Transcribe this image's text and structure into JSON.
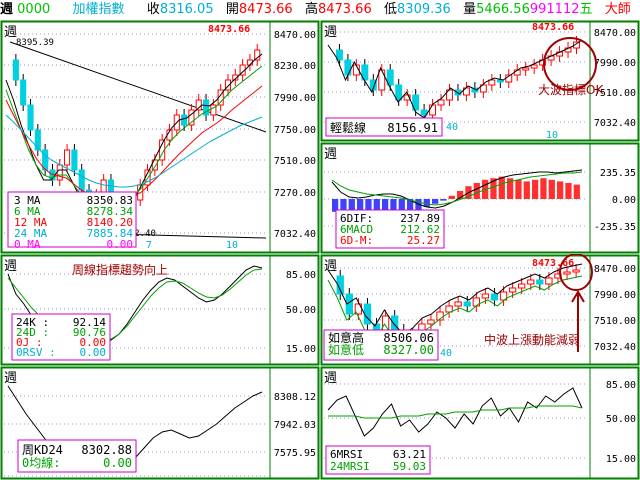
{
  "topbar": {
    "code": "0000",
    "name": "加權指數",
    "close_label": "收",
    "close_value": "8316.05",
    "open_label": "開",
    "open_value": "8473.66",
    "high_label": "高",
    "high_value": "8473.66",
    "low_label": "低",
    "low_value": "8309.36",
    "vol_label": "量",
    "vol_value": "5466.56",
    "date_value": "991112",
    "weekday": "五",
    "extra": "大師"
  },
  "colors": {
    "up": "#ff0000",
    "down": "#00d0e0",
    "grid": "#9999cc",
    "border": "#008000"
  },
  "panels": {
    "main": {
      "period": "週",
      "peak_label": "8473.66",
      "top_left_label": "8395.39",
      "low_label": "7032.40",
      "x_label_a": "7",
      "x_label_b": "10",
      "y_ticks": [
        "8470.00",
        "8230.00",
        "7990.00",
        "7750.00",
        "7510.00",
        "7270.00",
        "7032.40"
      ],
      "legend": [
        {
          "label": "3 MA",
          "value": "8350.83",
          "color": "#000000"
        },
        {
          "label": "6 MA",
          "value": "8278.34",
          "color": "#00a000"
        },
        {
          "label": "12 MA",
          "value": "8140.20",
          "color": "#ff0000"
        },
        {
          "label": "24 MA",
          "value": "7885.84",
          "color": "#00b0d0"
        },
        {
          "label": "0 MA",
          "value": "0.00",
          "color": "#ff00ff"
        }
      ]
    },
    "relax": {
      "period": "週",
      "peak_label": "8473.66",
      "low_label": "40",
      "x_label_a": "10",
      "y_ticks": [
        "8470.00",
        "7990.00",
        "7510.00",
        "7032.40"
      ],
      "box_label": "輕鬆線",
      "box_value": "8156.91",
      "annotation": "大波指標OK"
    },
    "macd": {
      "period": "週",
      "y_ticks": [
        "235.35",
        "0.00",
        "-235.35"
      ],
      "rows": [
        {
          "label": "6DIF:",
          "value": "237.89",
          "color": "#000000"
        },
        {
          "label": "6MACD",
          "value": "212.62",
          "color": "#00a000"
        },
        {
          "label": "6D-M:",
          "value": "25.27",
          "color": "#ff0000"
        }
      ]
    },
    "kd": {
      "period": "週",
      "annotation": "周線指標趨勢向上",
      "y_ticks": [
        "85.00",
        "50.00",
        "15.00"
      ],
      "rows": [
        {
          "label": "24K :",
          "value": "92.14",
          "color": "#000000"
        },
        {
          "label": "24D :",
          "value": "90.76",
          "color": "#00a000"
        },
        {
          "label": "0J :",
          "value": "0.00",
          "color": "#ff0000"
        },
        {
          "label": "0RSV :",
          "value": "0.00",
          "color": "#00b0d0"
        }
      ]
    },
    "ruyi": {
      "period": "週",
      "peak_label": "8473.66",
      "low_label": "40",
      "y_ticks": [
        "8470.00",
        "7990.00",
        "7510.00",
        "7032.40"
      ],
      "rows": [
        {
          "label": "如意高",
          "value": "8506.06",
          "color": "#000000"
        },
        {
          "label": "如意低",
          "value": "8327.00",
          "color": "#00a000"
        }
      ],
      "annotation": "中波上漲動能減弱"
    },
    "week_kd": {
      "period": "週",
      "y_ticks": [
        "8308.12",
        "7942.03",
        "7575.95",
        "7209.87"
      ],
      "rows": [
        {
          "label": "周KD24",
          "value": "8302.88",
          "color": "#000000"
        },
        {
          "label": "0均線:",
          "value": "0.00",
          "color": "#00a000"
        }
      ]
    },
    "mrsi": {
      "period": "週",
      "y_ticks": [
        "85.00",
        "50.00",
        "15.00"
      ],
      "rows": [
        {
          "label": "6MRSI",
          "value": "63.21",
          "color": "#000000"
        },
        {
          "label": "24MRSI",
          "value": "59.03",
          "color": "#00a000"
        }
      ]
    }
  }
}
